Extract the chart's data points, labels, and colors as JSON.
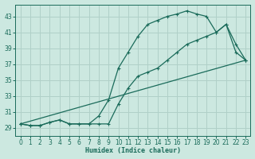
{
  "xlabel": "Humidex (Indice chaleur)",
  "xlim": [
    -0.5,
    23.5
  ],
  "ylim": [
    28.0,
    44.5
  ],
  "xticks": [
    0,
    1,
    2,
    3,
    4,
    5,
    6,
    7,
    8,
    9,
    10,
    11,
    12,
    13,
    14,
    15,
    16,
    17,
    18,
    19,
    20,
    21,
    22,
    23
  ],
  "yticks": [
    29,
    31,
    33,
    35,
    37,
    39,
    41,
    43
  ],
  "bg_color": "#cce8e0",
  "grid_color": "#b0d0c8",
  "line_color": "#1a6b5a",
  "line1_x": [
    0,
    1,
    2,
    3,
    4,
    5,
    6,
    7,
    8,
    9,
    10,
    11,
    12,
    13,
    14,
    15,
    16,
    17,
    18,
    19,
    20,
    21,
    22,
    23
  ],
  "line1_y": [
    29.5,
    29.3,
    29.3,
    29.7,
    30.0,
    29.5,
    29.5,
    29.5,
    29.5,
    29.5,
    32.0,
    34.0,
    35.5,
    36.0,
    36.5,
    37.5,
    38.5,
    39.5,
    40.0,
    40.5,
    41.0,
    42.0,
    38.5,
    37.5
  ],
  "line2_x": [
    0,
    1,
    2,
    3,
    4,
    5,
    6,
    7,
    8,
    9,
    10,
    11,
    12,
    13,
    14,
    15,
    16,
    17,
    18,
    19,
    20,
    21,
    22,
    23
  ],
  "line2_y": [
    29.5,
    29.3,
    29.3,
    29.7,
    30.0,
    29.5,
    29.5,
    29.5,
    30.5,
    32.5,
    36.5,
    38.5,
    40.5,
    42.0,
    42.5,
    43.0,
    43.3,
    43.7,
    43.3,
    43.0,
    41.0,
    42.0,
    39.5,
    37.5
  ],
  "line3_x": [
    0,
    23
  ],
  "line3_y": [
    29.5,
    37.5
  ]
}
